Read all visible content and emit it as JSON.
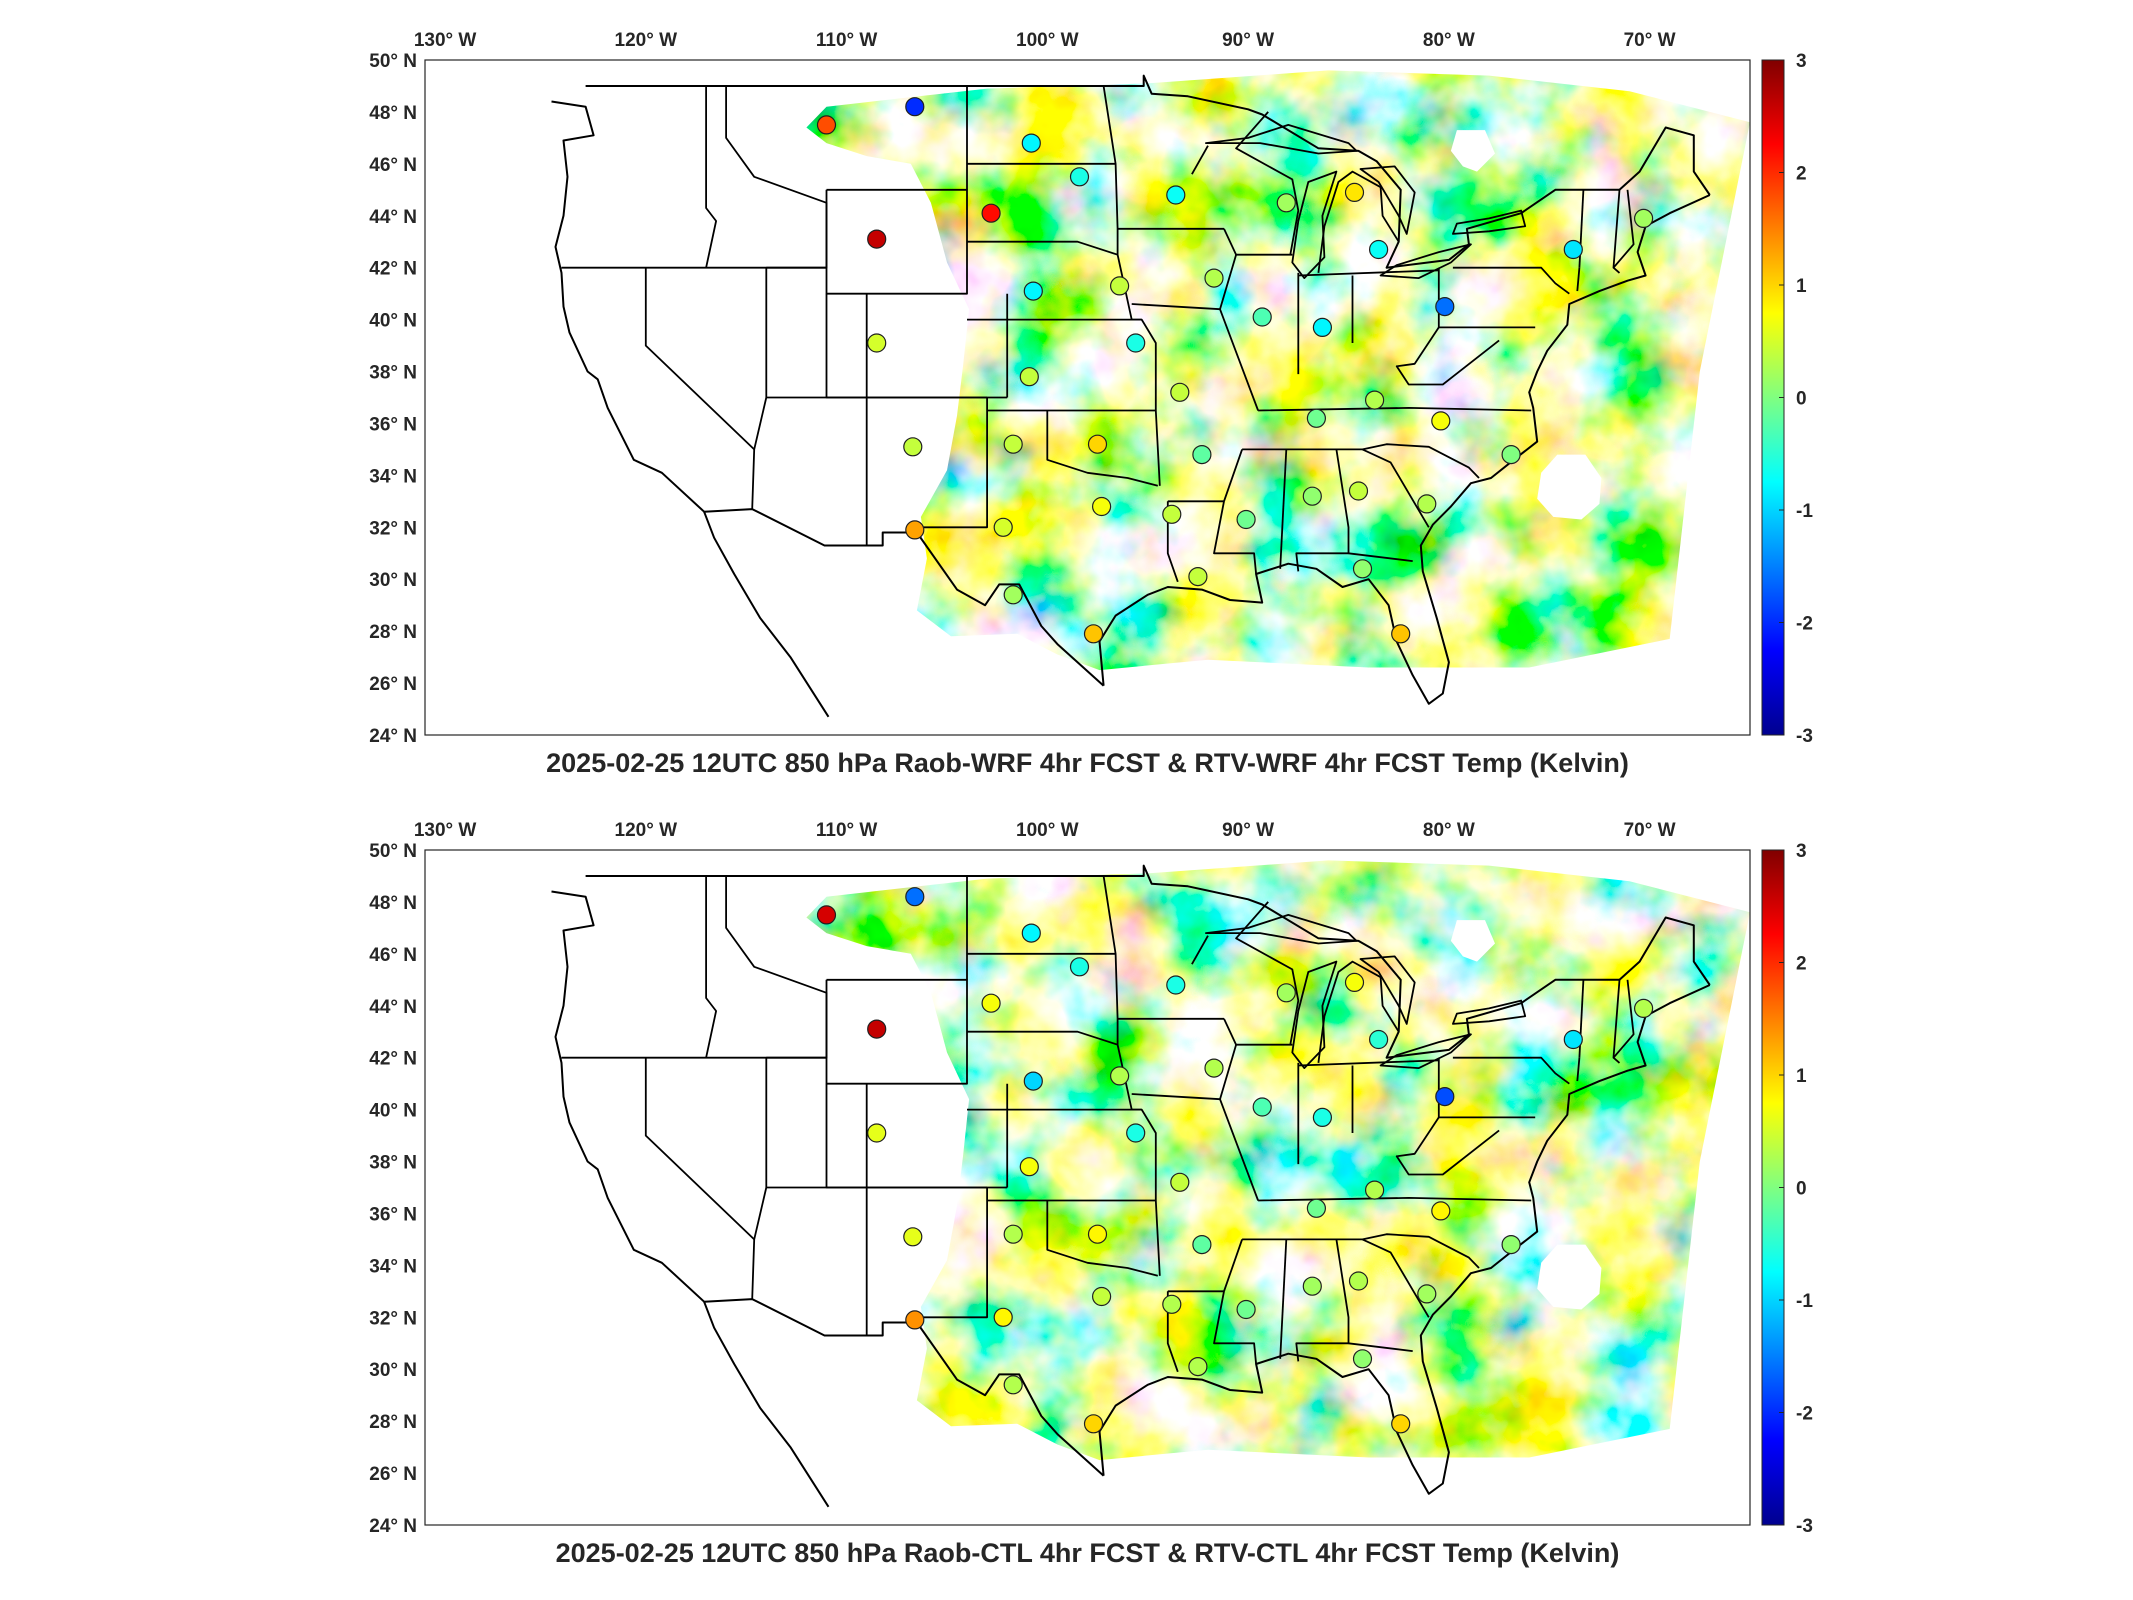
{
  "colormap": [
    "#00008f",
    "#0000ff",
    "#0080ff",
    "#00ffff",
    "#80ff80",
    "#ffff00",
    "#ff8000",
    "#ff0000",
    "#800000"
  ],
  "colorbar": {
    "min": -3,
    "max": 3,
    "ticks": [
      "3",
      "2",
      "1",
      "0",
      "-1",
      "-2",
      "-3"
    ],
    "tick_values": [
      3,
      2,
      1,
      0,
      -1,
      -2,
      -3
    ]
  },
  "axes": {
    "lon_labels": [
      "130",
      "120",
      "110",
      "100",
      "90",
      "80",
      "70"
    ],
    "lon_values": [
      -130,
      -120,
      -110,
      -100,
      -90,
      -80,
      -70
    ],
    "lon_suffix": "W",
    "lat_labels": [
      "50",
      "48",
      "46",
      "44",
      "42",
      "40",
      "38",
      "36",
      "34",
      "32",
      "30",
      "28",
      "26",
      "24"
    ],
    "lat_values": [
      50,
      48,
      46,
      44,
      42,
      40,
      38,
      36,
      34,
      32,
      30,
      28,
      26,
      24
    ],
    "lat_suffix": "N",
    "degree_symbol": "°",
    "lon_range": [
      -131,
      -65
    ],
    "lat_range": [
      24,
      50
    ]
  },
  "panels": [
    {
      "id": "top",
      "caption": "2025-02-25 12UTC 850 hPa Raob-WRF 4hr FCST & RTV-WRF 4hr FCST Temp (Kelvin)",
      "stations": [
        {
          "lon": -111.0,
          "lat": 47.5,
          "value": 1.8
        },
        {
          "lon": -106.6,
          "lat": 48.2,
          "value": -2.0
        },
        {
          "lon": -100.8,
          "lat": 46.8,
          "value": -0.8
        },
        {
          "lon": -98.4,
          "lat": 45.5,
          "value": -0.6
        },
        {
          "lon": -93.6,
          "lat": 44.8,
          "value": -0.7
        },
        {
          "lon": -102.8,
          "lat": 44.1,
          "value": 2.2
        },
        {
          "lon": -108.5,
          "lat": 43.1,
          "value": 2.6
        },
        {
          "lon": -84.7,
          "lat": 44.9,
          "value": 0.9
        },
        {
          "lon": -88.1,
          "lat": 44.5,
          "value": 0.2
        },
        {
          "lon": -83.5,
          "lat": 42.7,
          "value": -0.7
        },
        {
          "lon": -73.8,
          "lat": 42.7,
          "value": -0.9
        },
        {
          "lon": -70.3,
          "lat": 43.9,
          "value": 0.2
        },
        {
          "lon": -100.7,
          "lat": 41.1,
          "value": -0.8
        },
        {
          "lon": -96.4,
          "lat": 41.3,
          "value": 0.4
        },
        {
          "lon": -91.7,
          "lat": 41.6,
          "value": 0.3
        },
        {
          "lon": -80.2,
          "lat": 40.5,
          "value": -1.6
        },
        {
          "lon": -108.5,
          "lat": 39.1,
          "value": 0.5
        },
        {
          "lon": -95.6,
          "lat": 39.1,
          "value": -0.6
        },
        {
          "lon": -89.3,
          "lat": 40.1,
          "value": -0.3
        },
        {
          "lon": -86.3,
          "lat": 39.7,
          "value": -0.8
        },
        {
          "lon": -93.4,
          "lat": 37.2,
          "value": 0.4
        },
        {
          "lon": -100.9,
          "lat": 37.8,
          "value": 0.4
        },
        {
          "lon": -101.7,
          "lat": 35.2,
          "value": 0.4
        },
        {
          "lon": -97.5,
          "lat": 35.2,
          "value": 1.0
        },
        {
          "lon": -92.3,
          "lat": 34.8,
          "value": -0.2
        },
        {
          "lon": -86.6,
          "lat": 36.2,
          "value": -0.1
        },
        {
          "lon": -83.7,
          "lat": 36.9,
          "value": 0.3
        },
        {
          "lon": -80.4,
          "lat": 36.1,
          "value": 0.7
        },
        {
          "lon": -106.7,
          "lat": 35.1,
          "value": 0.4
        },
        {
          "lon": -106.6,
          "lat": 31.9,
          "value": 1.3
        },
        {
          "lon": -102.2,
          "lat": 32.0,
          "value": 0.5
        },
        {
          "lon": -97.3,
          "lat": 32.8,
          "value": 0.7
        },
        {
          "lon": -93.8,
          "lat": 32.5,
          "value": 0.4
        },
        {
          "lon": -90.1,
          "lat": 32.3,
          "value": -0.1
        },
        {
          "lon": -86.8,
          "lat": 33.2,
          "value": 0.1
        },
        {
          "lon": -84.5,
          "lat": 33.4,
          "value": 0.4
        },
        {
          "lon": -81.1,
          "lat": 32.9,
          "value": 0.3
        },
        {
          "lon": -76.9,
          "lat": 34.8,
          "value": 0.0
        },
        {
          "lon": -92.5,
          "lat": 30.1,
          "value": 0.4
        },
        {
          "lon": -97.7,
          "lat": 27.9,
          "value": 1.1
        },
        {
          "lon": -82.4,
          "lat": 27.9,
          "value": 1.1
        },
        {
          "lon": -84.3,
          "lat": 30.4,
          "value": 0.1
        },
        {
          "lon": -101.7,
          "lat": 29.4,
          "value": 0.2
        }
      ]
    },
    {
      "id": "bottom",
      "caption": "2025-02-25 12UTC 850 hPa Raob-CTL 4hr FCST & RTV-CTL 4hr FCST Temp (Kelvin)",
      "stations": [
        {
          "lon": -111.0,
          "lat": 47.5,
          "value": 2.5
        },
        {
          "lon": -106.6,
          "lat": 48.2,
          "value": -1.6
        },
        {
          "lon": -100.8,
          "lat": 46.8,
          "value": -0.8
        },
        {
          "lon": -98.4,
          "lat": 45.5,
          "value": -0.6
        },
        {
          "lon": -93.6,
          "lat": 44.8,
          "value": -0.6
        },
        {
          "lon": -102.8,
          "lat": 44.1,
          "value": 0.7
        },
        {
          "lon": -108.5,
          "lat": 43.1,
          "value": 2.6
        },
        {
          "lon": -84.7,
          "lat": 44.9,
          "value": 0.7
        },
        {
          "lon": -88.1,
          "lat": 44.5,
          "value": 0.2
        },
        {
          "lon": -83.5,
          "lat": 42.7,
          "value": -0.5
        },
        {
          "lon": -73.8,
          "lat": 42.7,
          "value": -0.9
        },
        {
          "lon": -70.3,
          "lat": 43.9,
          "value": 0.3
        },
        {
          "lon": -100.7,
          "lat": 41.1,
          "value": -1.0
        },
        {
          "lon": -96.4,
          "lat": 41.3,
          "value": 0.3
        },
        {
          "lon": -91.7,
          "lat": 41.6,
          "value": 0.3
        },
        {
          "lon": -80.2,
          "lat": 40.5,
          "value": -1.8
        },
        {
          "lon": -108.5,
          "lat": 39.1,
          "value": 0.6
        },
        {
          "lon": -95.6,
          "lat": 39.1,
          "value": -0.6
        },
        {
          "lon": -89.3,
          "lat": 40.1,
          "value": -0.3
        },
        {
          "lon": -86.3,
          "lat": 39.7,
          "value": -0.6
        },
        {
          "lon": -93.4,
          "lat": 37.2,
          "value": 0.4
        },
        {
          "lon": -100.9,
          "lat": 37.8,
          "value": 0.7
        },
        {
          "lon": -101.7,
          "lat": 35.2,
          "value": 0.3
        },
        {
          "lon": -97.5,
          "lat": 35.2,
          "value": 0.8
        },
        {
          "lon": -92.3,
          "lat": 34.8,
          "value": -0.2
        },
        {
          "lon": -86.6,
          "lat": 36.2,
          "value": -0.1
        },
        {
          "lon": -83.7,
          "lat": 36.9,
          "value": 0.3
        },
        {
          "lon": -80.4,
          "lat": 36.1,
          "value": 0.8
        },
        {
          "lon": -106.7,
          "lat": 35.1,
          "value": 0.6
        },
        {
          "lon": -106.6,
          "lat": 31.9,
          "value": 1.4
        },
        {
          "lon": -102.2,
          "lat": 32.0,
          "value": 0.8
        },
        {
          "lon": -97.3,
          "lat": 32.8,
          "value": 0.4
        },
        {
          "lon": -93.8,
          "lat": 32.5,
          "value": 0.3
        },
        {
          "lon": -90.1,
          "lat": 32.3,
          "value": -0.1
        },
        {
          "lon": -86.8,
          "lat": 33.2,
          "value": 0.2
        },
        {
          "lon": -84.5,
          "lat": 33.4,
          "value": 0.3
        },
        {
          "lon": -81.1,
          "lat": 32.9,
          "value": 0.2
        },
        {
          "lon": -76.9,
          "lat": 34.8,
          "value": 0.1
        },
        {
          "lon": -92.5,
          "lat": 30.1,
          "value": 0.3
        },
        {
          "lon": -97.7,
          "lat": 27.9,
          "value": 1.0
        },
        {
          "lon": -82.4,
          "lat": 27.9,
          "value": 1.0
        },
        {
          "lon": -84.3,
          "lat": 30.4,
          "value": 0.1
        },
        {
          "lon": -101.7,
          "lat": 29.4,
          "value": 0.3
        }
      ]
    }
  ]
}
